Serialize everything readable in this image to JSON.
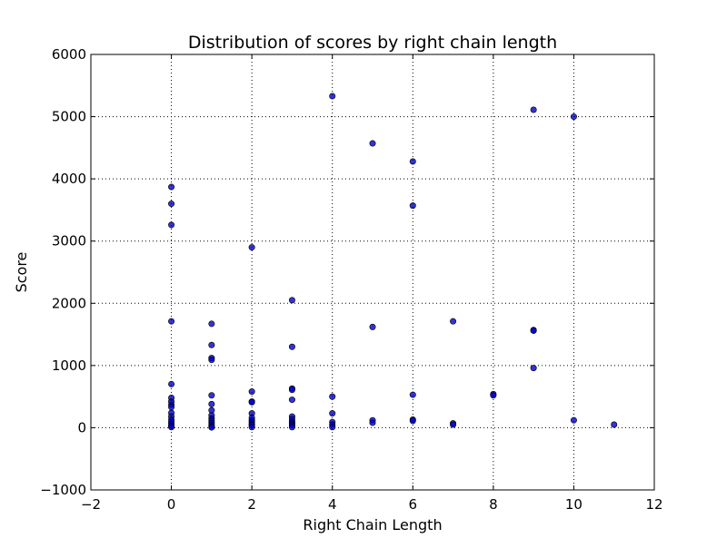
{
  "chart_data": {
    "type": "scatter",
    "title": "Distribution of scores by right chain length",
    "xlabel": "Right Chain Length",
    "ylabel": "Score",
    "xlim": [
      -2,
      12
    ],
    "ylim": [
      -1000,
      6000
    ],
    "xticks": [
      -2,
      0,
      2,
      4,
      6,
      8,
      10,
      12
    ],
    "yticks": [
      -1000,
      0,
      1000,
      2000,
      3000,
      4000,
      5000,
      6000
    ],
    "xtick_labels": [
      "−2",
      "0",
      "2",
      "4",
      "6",
      "8",
      "10",
      "12"
    ],
    "ytick_labels": [
      "−1000",
      "0",
      "1000",
      "2000",
      "3000",
      "4000",
      "5000",
      "6000"
    ],
    "grid": true,
    "marker_color": "#0000cc",
    "series": [
      {
        "points": [
          [
            0,
            3870
          ],
          [
            0,
            3600
          ],
          [
            0,
            3260
          ],
          [
            0,
            1710
          ],
          [
            0,
            700
          ],
          [
            0,
            480
          ],
          [
            0,
            420
          ],
          [
            0,
            370
          ],
          [
            0,
            330
          ],
          [
            0,
            240
          ],
          [
            0,
            180
          ],
          [
            0,
            130
          ],
          [
            0,
            90
          ],
          [
            0,
            60
          ],
          [
            0,
            30
          ],
          [
            0,
            10
          ],
          [
            1,
            1670
          ],
          [
            1,
            1330
          ],
          [
            1,
            1120
          ],
          [
            1,
            1090
          ],
          [
            1,
            520
          ],
          [
            1,
            380
          ],
          [
            1,
            280
          ],
          [
            1,
            200
          ],
          [
            1,
            150
          ],
          [
            1,
            110
          ],
          [
            1,
            80
          ],
          [
            1,
            50
          ],
          [
            1,
            20
          ],
          [
            1,
            5
          ],
          [
            2,
            2900
          ],
          [
            2,
            580
          ],
          [
            2,
            420
          ],
          [
            2,
            410
          ],
          [
            2,
            230
          ],
          [
            2,
            160
          ],
          [
            2,
            120
          ],
          [
            2,
            90
          ],
          [
            2,
            60
          ],
          [
            2,
            40
          ],
          [
            2,
            10
          ],
          [
            3,
            2050
          ],
          [
            3,
            1300
          ],
          [
            3,
            630
          ],
          [
            3,
            610
          ],
          [
            3,
            450
          ],
          [
            3,
            180
          ],
          [
            3,
            140
          ],
          [
            3,
            100
          ],
          [
            3,
            70
          ],
          [
            3,
            40
          ],
          [
            3,
            10
          ],
          [
            4,
            5330
          ],
          [
            4,
            500
          ],
          [
            4,
            230
          ],
          [
            4,
            90
          ],
          [
            4,
            50
          ],
          [
            4,
            10
          ],
          [
            5,
            4570
          ],
          [
            5,
            1620
          ],
          [
            5,
            120
          ],
          [
            5,
            80
          ],
          [
            6,
            4280
          ],
          [
            6,
            3570
          ],
          [
            6,
            530
          ],
          [
            6,
            130
          ],
          [
            6,
            110
          ],
          [
            7,
            1710
          ],
          [
            7,
            70
          ],
          [
            7,
            50
          ],
          [
            8,
            540
          ],
          [
            8,
            520
          ],
          [
            9,
            5110
          ],
          [
            9,
            1570
          ],
          [
            9,
            1560
          ],
          [
            9,
            960
          ],
          [
            10,
            5000
          ],
          [
            10,
            120
          ],
          [
            11,
            50
          ]
        ]
      }
    ]
  }
}
